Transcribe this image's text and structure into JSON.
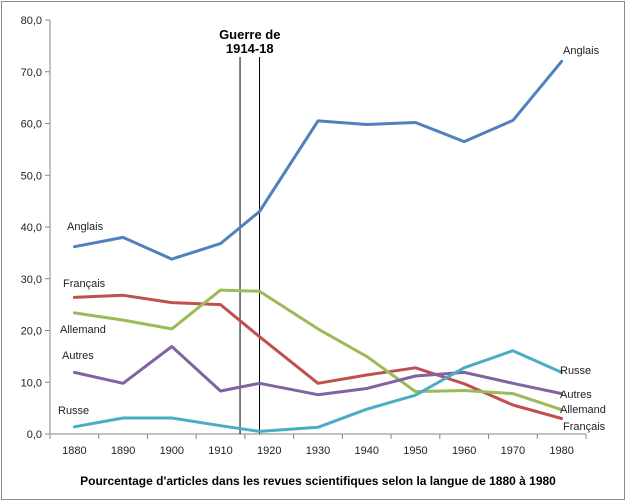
{
  "chart_data": {
    "type": "line",
    "title": "",
    "xlabel": "Pourcentage d'articles dans les revues scientifiques selon la langue de 1880 à 1980",
    "ylabel": "",
    "x": [
      1880,
      1890,
      1900,
      1910,
      1920,
      1930,
      1940,
      1950,
      1960,
      1970,
      1980
    ],
    "x_tick_labels": [
      "1880",
      "1890",
      "1900",
      "1910",
      "1920",
      "1930",
      "1940",
      "1950",
      "1960",
      "1970",
      "1980"
    ],
    "x_data_points": [
      1880,
      1890,
      1900,
      1910,
      1918,
      1930,
      1940,
      1950,
      1960,
      1970,
      1980
    ],
    "ylim": [
      0,
      80
    ],
    "y_ticks": [
      "0,0",
      "10,0",
      "20,0",
      "30,0",
      "40,0",
      "50,0",
      "60,0",
      "70,0",
      "80,0"
    ],
    "grid": false,
    "annotation": {
      "text_line1": "Guerre de",
      "text_line2": "1914-18",
      "x_start": 1914,
      "x_end": 1918
    },
    "series": [
      {
        "name": "Anglais",
        "color": "#4f81bd",
        "values": [
          36.2,
          38.0,
          33.8,
          36.8,
          43.0,
          60.5,
          59.8,
          60.2,
          56.5,
          60.6,
          72.0
        ]
      },
      {
        "name": "Français",
        "color": "#c0504d",
        "values": [
          26.4,
          26.8,
          25.4,
          25.0,
          18.8,
          9.8,
          11.4,
          12.8,
          9.7,
          5.6,
          3.0
        ]
      },
      {
        "name": "Allemand",
        "color": "#9bbb59",
        "values": [
          23.4,
          22.0,
          20.3,
          27.8,
          27.6,
          20.3,
          15.0,
          8.2,
          8.4,
          7.8,
          4.7
        ]
      },
      {
        "name": "Autres",
        "color": "#8064a2",
        "values": [
          11.9,
          9.8,
          16.9,
          8.3,
          9.8,
          7.6,
          8.8,
          11.2,
          11.9,
          9.8,
          7.8
        ]
      },
      {
        "name": "Russe",
        "color": "#4bacc6",
        "values": [
          1.4,
          3.1,
          3.1,
          1.6,
          0.5,
          1.3,
          4.8,
          7.5,
          12.8,
          16.1,
          11.9
        ]
      }
    ],
    "labels_left": [
      "Anglais",
      "Français",
      "Allemand",
      "Autres",
      "Russe"
    ],
    "labels_right": [
      "Anglais",
      "Russe",
      "Autres",
      "Allemand",
      "Français"
    ]
  }
}
